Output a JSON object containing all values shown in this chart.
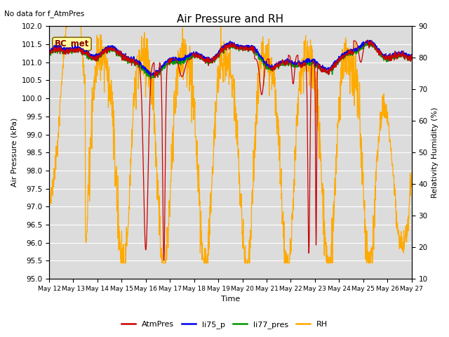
{
  "title": "Air Pressure and RH",
  "subtitle": "No data for f_AtmPres",
  "xlabel": "Time",
  "ylabel_left": "Air Pressure (kPa)",
  "ylabel_right": "Relativity Humidity (%)",
  "legend_label": "BC_met",
  "ylim_left": [
    95.0,
    102.0
  ],
  "ylim_right": [
    10,
    90
  ],
  "yticks_left": [
    95.0,
    95.5,
    96.0,
    96.5,
    97.0,
    97.5,
    98.0,
    98.5,
    99.0,
    99.5,
    100.0,
    100.5,
    101.0,
    101.5,
    102.0
  ],
  "yticks_right": [
    10,
    20,
    30,
    40,
    50,
    60,
    70,
    80,
    90
  ],
  "xtick_labels": [
    "May 12",
    "May 13",
    "May 14",
    "May 15",
    "May 16",
    "May 17",
    "May 18",
    "May 19",
    "May 20",
    "May 21",
    "May 22",
    "May 23",
    "May 24",
    "May 25",
    "May 26",
    "May 27"
  ],
  "colors": {
    "AtmPres": "#CC0000",
    "li75_p": "#0000EE",
    "li77_pres": "#009900",
    "RH": "#FFAA00",
    "background": "#DCDCDC",
    "grid": "white"
  },
  "n_days": 15,
  "n_points": 1500
}
